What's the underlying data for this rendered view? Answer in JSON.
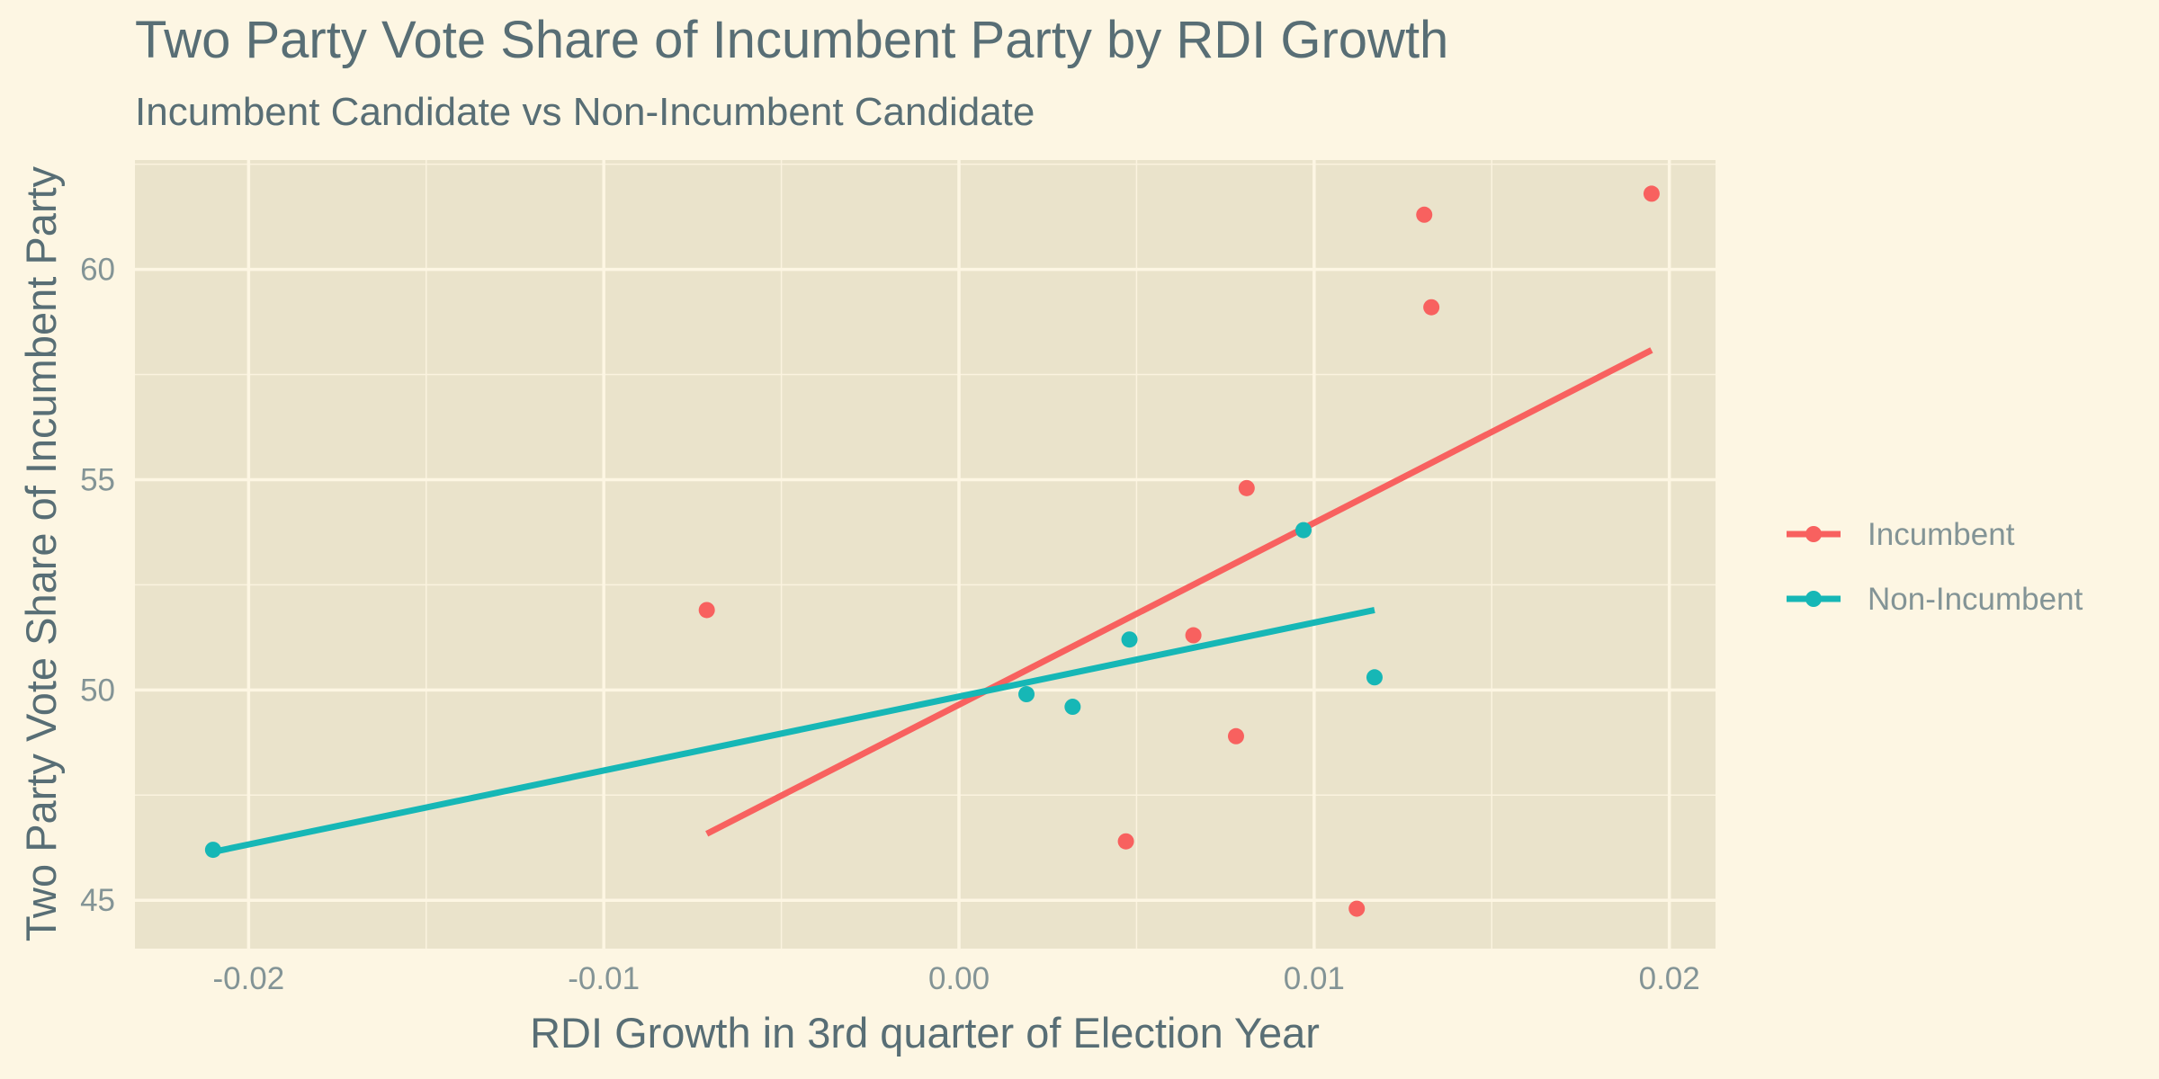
{
  "chart_data": {
    "type": "scatter",
    "title": "Two Party Vote Share of Incumbent Party by RDI Growth",
    "subtitle": "Incumbent Candidate vs Non-Incumbent Candidate",
    "xlabel": "RDI Growth in 3rd quarter of Election Year",
    "ylabel": "Two Party Vote Share of Incumbent Party",
    "xlim": [
      -0.0232,
      0.0213
    ],
    "ylim": [
      43.85,
      62.6
    ],
    "x_ticks": [
      -0.02,
      -0.01,
      0.0,
      0.01,
      0.02
    ],
    "x_tick_labels": [
      "-0.02",
      "-0.01",
      "0.00",
      "0.01",
      "0.02"
    ],
    "y_ticks": [
      45,
      50,
      55,
      60
    ],
    "y_tick_labels": [
      "45",
      "50",
      "55",
      "60"
    ],
    "grid": true,
    "legend_position": "right",
    "background": "#fdf6e3",
    "panel_background": "#eae3cb",
    "series": [
      {
        "name": "Incumbent",
        "color": "#f8615f",
        "points": [
          {
            "x": -0.0071,
            "y": 51.9
          },
          {
            "x": 0.0047,
            "y": 46.4
          },
          {
            "x": 0.0066,
            "y": 51.3
          },
          {
            "x": 0.0078,
            "y": 48.9
          },
          {
            "x": 0.0081,
            "y": 54.8
          },
          {
            "x": 0.0112,
            "y": 44.8
          },
          {
            "x": 0.0131,
            "y": 61.3
          },
          {
            "x": 0.0133,
            "y": 59.1
          },
          {
            "x": 0.0195,
            "y": 61.8
          }
        ],
        "fit": {
          "x": [
            -0.0071,
            0.0195
          ],
          "y": [
            46.58,
            58.08
          ]
        }
      },
      {
        "name": "Non-Incumbent",
        "color": "#16b7b6",
        "points": [
          {
            "x": -0.021,
            "y": 46.2
          },
          {
            "x": 0.0019,
            "y": 49.9
          },
          {
            "x": 0.0032,
            "y": 49.6
          },
          {
            "x": 0.0048,
            "y": 51.2
          },
          {
            "x": 0.0097,
            "y": 53.8
          },
          {
            "x": 0.0117,
            "y": 50.3
          }
        ],
        "fit": {
          "x": [
            -0.021,
            0.0117
          ],
          "y": [
            46.15,
            51.9
          ]
        }
      }
    ]
  }
}
